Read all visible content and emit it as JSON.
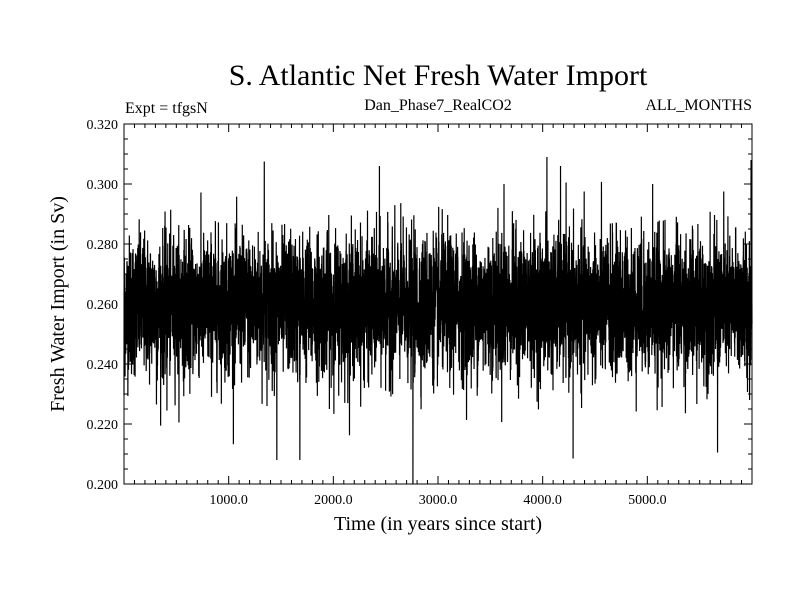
{
  "chart_data": {
    "type": "line",
    "title": "S. Atlantic Net Fresh Water Import",
    "experiment_label": "Expt = tfgsN",
    "run_label": "Dan_Phase7_RealCO2",
    "months_label": "ALL_MONTHS",
    "xlabel": "Time (in years since start)",
    "ylabel": "Fresh Water Import (in Sv)",
    "xlim": [
      0,
      6000
    ],
    "ylim": [
      0.2,
      0.32
    ],
    "x_ticks": [
      {
        "value": 1000,
        "label": "1000.0"
      },
      {
        "value": 2000,
        "label": "2000.0"
      },
      {
        "value": 3000,
        "label": "3000.0"
      },
      {
        "value": 4000,
        "label": "4000.0"
      },
      {
        "value": 5000,
        "label": "5000.0"
      }
    ],
    "y_ticks": [
      {
        "value": 0.2,
        "label": "0.200"
      },
      {
        "value": 0.22,
        "label": "0.220"
      },
      {
        "value": 0.24,
        "label": "0.240"
      },
      {
        "value": 0.26,
        "label": "0.260"
      },
      {
        "value": 0.28,
        "label": "0.280"
      },
      {
        "value": 0.3,
        "label": "0.300"
      },
      {
        "value": 0.32,
        "label": "0.320"
      }
    ],
    "series": [
      {
        "name": "Net Fresh Water Import",
        "mean": 0.2595,
        "std": 0.0115,
        "n_points": 6000,
        "annual_samples_generated": true,
        "values": [
          [
            0,
            0.2295
          ],
          [
            310,
            0.2265
          ],
          [
            410,
            0.2245
          ],
          [
            1340,
            0.3075
          ],
          [
            1460,
            0.208
          ],
          [
            1680,
            0.208
          ],
          [
            2440,
            0.306
          ],
          [
            2760,
            0.2
          ],
          [
            3630,
            0.3
          ],
          [
            4040,
            0.309
          ],
          [
            4170,
            0.306
          ],
          [
            4290,
            0.2085
          ],
          [
            5050,
            0.3
          ],
          [
            5670,
            0.2105
          ],
          [
            5990,
            0.308
          ]
        ]
      }
    ],
    "grid": false,
    "legend": "none"
  }
}
